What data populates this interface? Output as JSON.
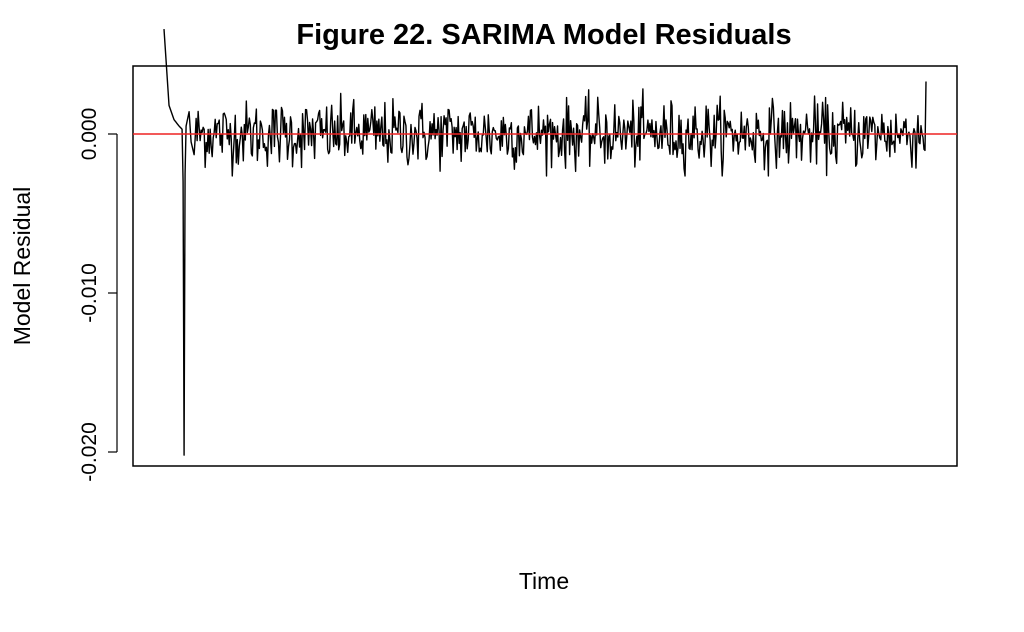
{
  "chart_data": {
    "type": "line",
    "title": "Figure 22. SARIMA Model Residuals",
    "xlabel": "Time",
    "ylabel": "Model Residual",
    "ylim": [
      -0.0209,
      0.0043
    ],
    "yticks": [
      0.0,
      -0.01,
      -0.02
    ],
    "ytick_labels": [
      "0.000",
      "-0.010",
      "-0.020"
    ],
    "x_ticks_shown": false,
    "grid": false,
    "series": [
      {
        "color": "#000000",
        "n_points": 760,
        "keypoints": [
          {
            "index": 0,
            "value": 0.0066
          },
          {
            "index": 5,
            "value": 0.0018
          },
          {
            "index": 10,
            "value": 0.0009
          },
          {
            "index": 15,
            "value": 0.0005
          },
          {
            "index": 18,
            "value": 0.0003
          },
          {
            "index": 19,
            "value": -0.003
          },
          {
            "index": 20,
            "value": -0.0202
          },
          {
            "index": 21,
            "value": -0.0025
          },
          {
            "index": 22,
            "value": 0.0005
          },
          {
            "index": 25,
            "value": 0.0014
          },
          {
            "index": 27,
            "value": -0.0005
          },
          {
            "index": 30,
            "value": -0.0013
          }
        ],
        "noise_amplitude": 0.0012
      }
    ],
    "reference_line": {
      "y": 0.0,
      "color": "#ee2222"
    }
  }
}
